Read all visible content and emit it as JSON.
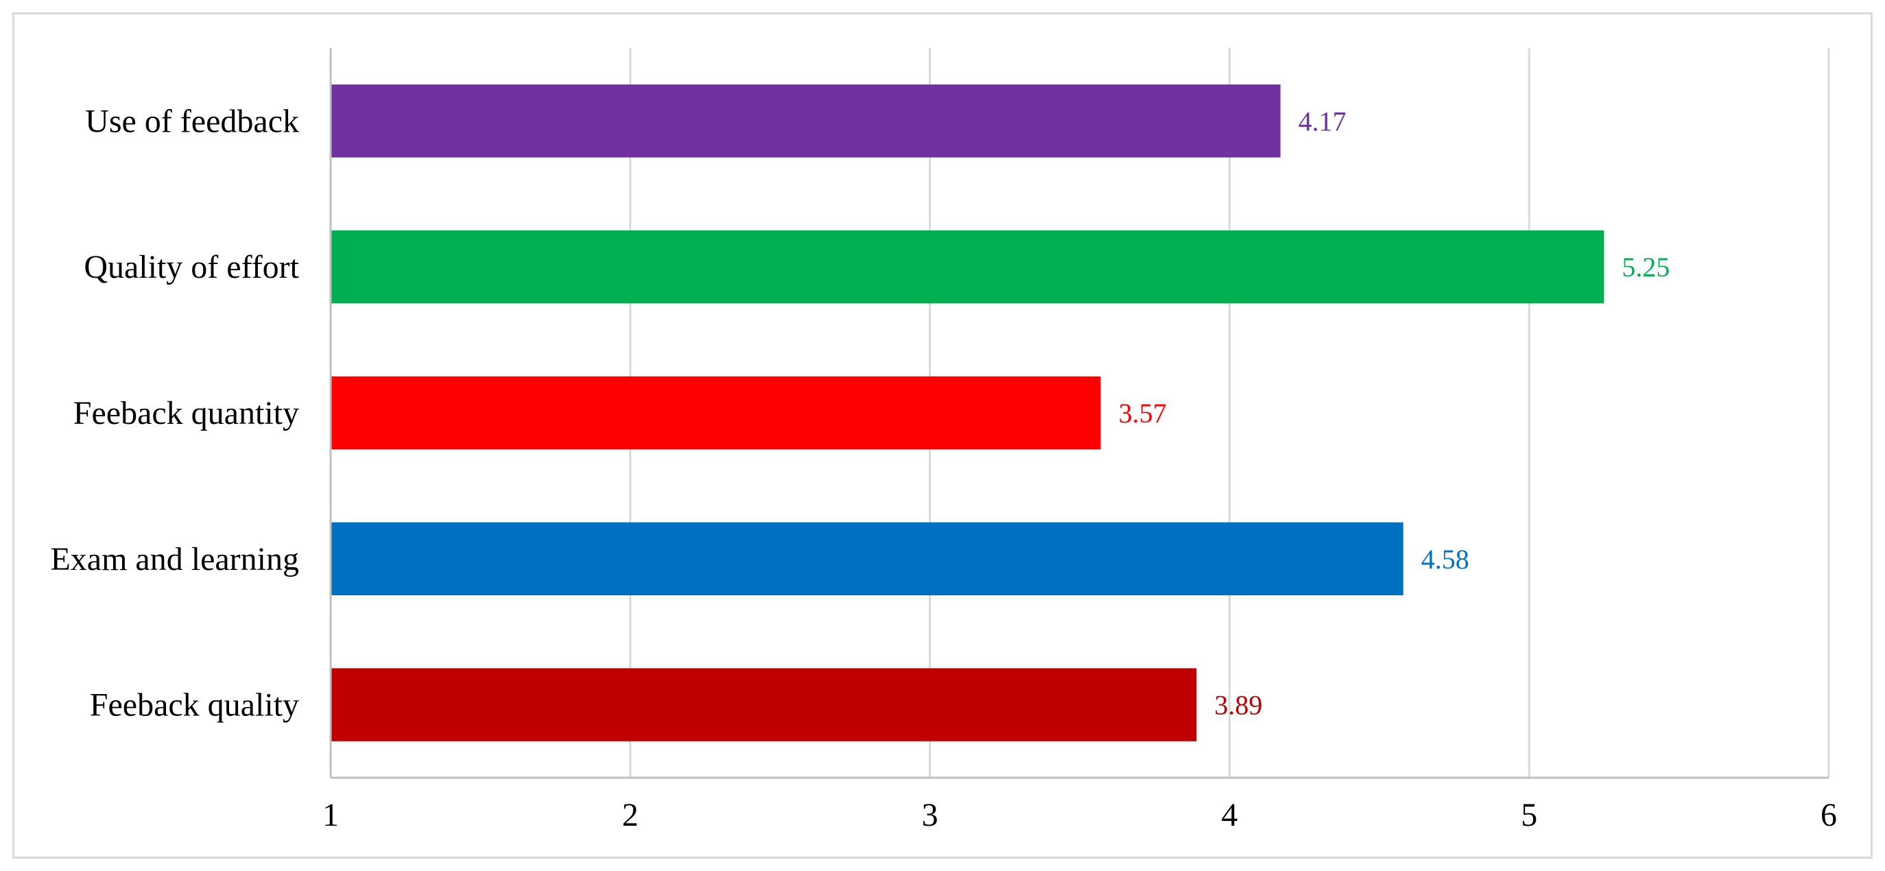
{
  "chart_data": {
    "type": "bar",
    "orientation": "horizontal",
    "categories": [
      "Use of feedback",
      "Quality of effort",
      "Feeback quantity",
      "Exam and learning",
      "Feeback quality"
    ],
    "values": [
      4.17,
      5.25,
      3.57,
      4.58,
      3.89
    ],
    "data_labels": [
      "4.17",
      "5.25",
      "3.57",
      "4.58",
      "3.89"
    ],
    "colors": [
      "#7030a0",
      "#00b050",
      "#ff0000",
      "#0070c0",
      "#c00000"
    ],
    "xlim": [
      1,
      6
    ],
    "xticks": [
      1,
      2,
      3,
      4,
      5,
      6
    ],
    "xtick_labels": [
      "1",
      "2",
      "3",
      "4",
      "5",
      "6"
    ],
    "grid": "vertical",
    "legend": "none"
  }
}
